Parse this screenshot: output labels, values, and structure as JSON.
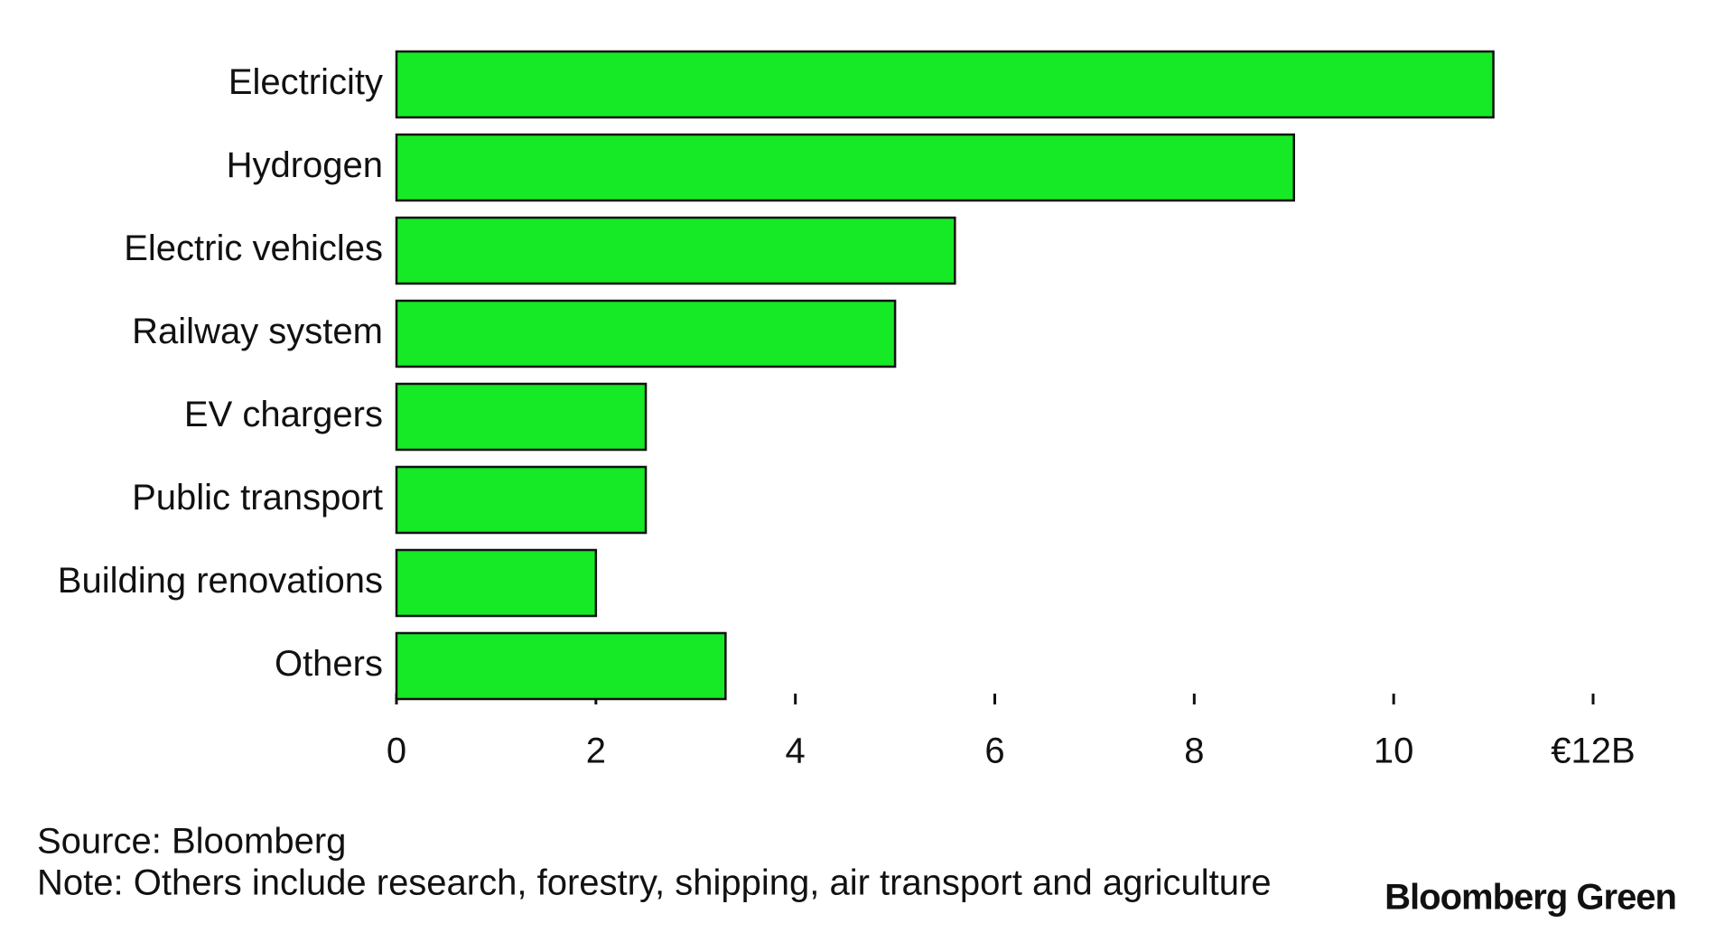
{
  "chart_data": {
    "type": "bar",
    "orientation": "horizontal",
    "categories": [
      "Electricity",
      "Hydrogen",
      "Electric vehicles",
      "Railway system",
      "EV chargers",
      "Public transport",
      "Building renovations",
      "Others"
    ],
    "values": [
      11,
      9,
      5.6,
      5,
      2.5,
      2.5,
      2,
      3.3
    ],
    "color": "#16e925",
    "xlim": [
      0,
      12
    ],
    "xticks": [
      0,
      2,
      4,
      6,
      8,
      10,
      {
        "value": 12,
        "label": "€12B"
      }
    ],
    "source": "Source: Bloomberg",
    "note": "Note: Others include research, forestry, shipping, air transport and agriculture",
    "brand": "Bloomberg Green"
  }
}
